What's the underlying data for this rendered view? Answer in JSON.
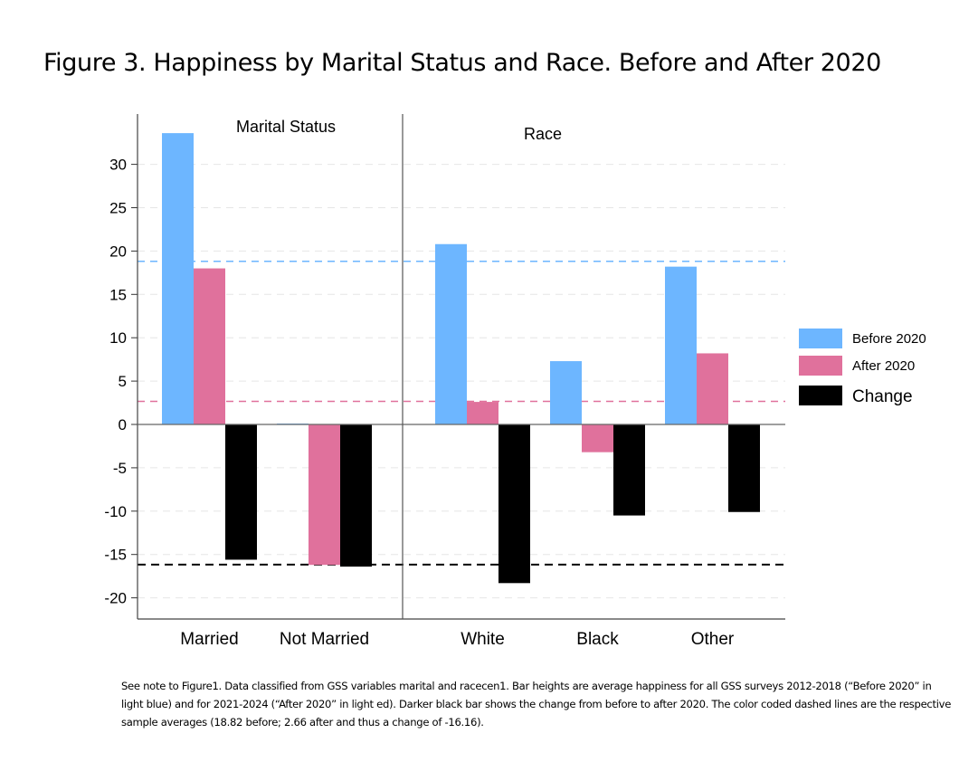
{
  "title": "Figure 3.  Happiness by Marital Status and Race. Before and After 2020",
  "note": "See note to Figure1. Data classified from GSS variables marital and racecen1. Bar heights are average happiness for all GSS surveys 2012-2018 (“Before 2020” in light blue) and for 2021-2024 (“After 2020” in light ed).   Darker black bar shows the change from before to after 2020.  The color coded dashed lines are the respective sample averages (18.82 before; 2.66 after and thus a change of -16.16).",
  "chart_data": {
    "type": "bar",
    "panels": [
      {
        "title": "Marital Status",
        "categories": [
          "Married",
          "Not Married"
        ]
      },
      {
        "title": "Race",
        "categories": [
          "White",
          "Black",
          "Other"
        ]
      }
    ],
    "categories": [
      "Married",
      "Not Married",
      "White",
      "Black",
      "Other"
    ],
    "series": [
      {
        "name": "Before 2020",
        "color": "#6db6ff",
        "values": [
          33.6,
          0.1,
          20.8,
          7.3,
          18.2
        ]
      },
      {
        "name": "After 2020",
        "color": "#e0719c",
        "values": [
          18.0,
          -16.2,
          2.6,
          -3.2,
          8.2
        ]
      },
      {
        "name": "Change",
        "color": "#000000",
        "values": [
          -15.6,
          -16.4,
          -18.3,
          -10.5,
          -10.1
        ]
      }
    ],
    "reference_lines": [
      {
        "series": "Before 2020",
        "value": 18.82,
        "color": "#6db6ff"
      },
      {
        "series": "After 2020",
        "value": 2.66,
        "color": "#e0719c"
      },
      {
        "series": "Change",
        "value": -16.16,
        "color": "#000000"
      }
    ],
    "yticks": [
      30,
      25,
      20,
      15,
      10,
      5,
      0,
      -5,
      -10,
      -15,
      -20
    ],
    "ylim": [
      -22.5,
      36
    ],
    "legend": "right",
    "grid": true
  }
}
